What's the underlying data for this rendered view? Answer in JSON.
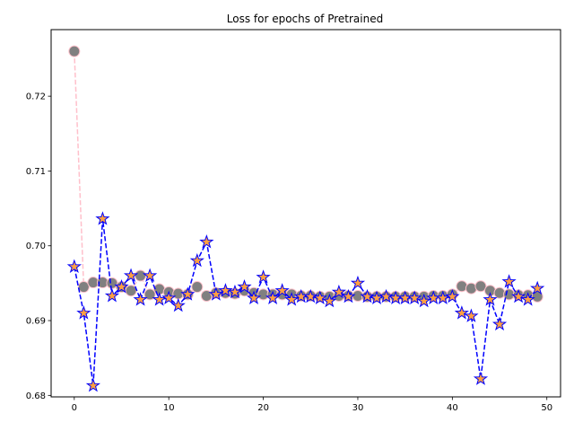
{
  "chart_data": {
    "type": "line",
    "title": "Loss for epochs of Pretrained",
    "xlabel": "",
    "ylabel": "",
    "xlim": [
      -2.45,
      51.45
    ],
    "ylim": [
      0.6798,
      0.7289
    ],
    "x_ticks": [
      0,
      10,
      20,
      30,
      40,
      50
    ],
    "y_ticks": [
      0.68,
      0.69,
      0.7,
      0.71,
      0.72
    ],
    "y_tick_labels": [
      "0.68",
      "0.69",
      "0.70",
      "0.71",
      "0.72"
    ],
    "grid": false,
    "legend": null,
    "series": [
      {
        "marker": "circle",
        "line_style": "dashed",
        "line_color": "#ffc0cb",
        "marker_face": "#808080",
        "marker_edge": "#ffc0cb",
        "x": [
          0,
          1,
          2,
          3,
          4,
          5,
          6,
          7,
          8,
          9,
          10,
          11,
          12,
          13,
          14,
          15,
          16,
          17,
          18,
          19,
          20,
          21,
          22,
          23,
          24,
          25,
          26,
          27,
          28,
          29,
          30,
          31,
          32,
          33,
          34,
          35,
          36,
          37,
          38,
          39,
          40,
          41,
          42,
          43,
          44,
          45,
          46,
          47,
          48,
          49
        ],
        "values": [
          0.726,
          0.6945,
          0.6951,
          0.6951,
          0.695,
          0.6945,
          0.694,
          0.696,
          0.6935,
          0.6942,
          0.6938,
          0.6936,
          0.6935,
          0.6945,
          0.6933,
          0.6937,
          0.6937,
          0.6936,
          0.694,
          0.6937,
          0.6935,
          0.6935,
          0.6935,
          0.6935,
          0.6933,
          0.6933,
          0.6932,
          0.6932,
          0.6933,
          0.6933,
          0.6933,
          0.6932,
          0.6932,
          0.6932,
          0.6932,
          0.6932,
          0.6932,
          0.6932,
          0.6933,
          0.6933,
          0.6935,
          0.6946,
          0.6943,
          0.6946,
          0.694,
          0.6937,
          0.6935,
          0.6934,
          0.6934,
          0.6932
        ]
      },
      {
        "marker": "star",
        "line_style": "dashed",
        "line_color": "#0000ff",
        "marker_face": "#ffa040",
        "marker_edge": "#0000ff",
        "x": [
          0,
          1,
          2,
          3,
          4,
          5,
          6,
          7,
          8,
          9,
          10,
          11,
          12,
          13,
          14,
          15,
          16,
          17,
          18,
          19,
          20,
          21,
          22,
          23,
          24,
          25,
          26,
          27,
          28,
          29,
          30,
          31,
          32,
          33,
          34,
          35,
          36,
          37,
          38,
          39,
          40,
          41,
          42,
          43,
          44,
          45,
          46,
          47,
          48,
          49
        ],
        "values": [
          0.6972,
          0.691,
          0.6813,
          0.7036,
          0.6933,
          0.6945,
          0.696,
          0.6928,
          0.696,
          0.6928,
          0.693,
          0.692,
          0.6935,
          0.698,
          0.7005,
          0.6935,
          0.694,
          0.6938,
          0.6945,
          0.693,
          0.6958,
          0.693,
          0.694,
          0.6928,
          0.6932,
          0.6932,
          0.693,
          0.6926,
          0.6938,
          0.6932,
          0.695,
          0.6932,
          0.693,
          0.6932,
          0.693,
          0.693,
          0.693,
          0.6926,
          0.693,
          0.693,
          0.6932,
          0.691,
          0.6906,
          0.6822,
          0.6928,
          0.6895,
          0.6952,
          0.6932,
          0.6928,
          0.6943
        ]
      }
    ]
  }
}
